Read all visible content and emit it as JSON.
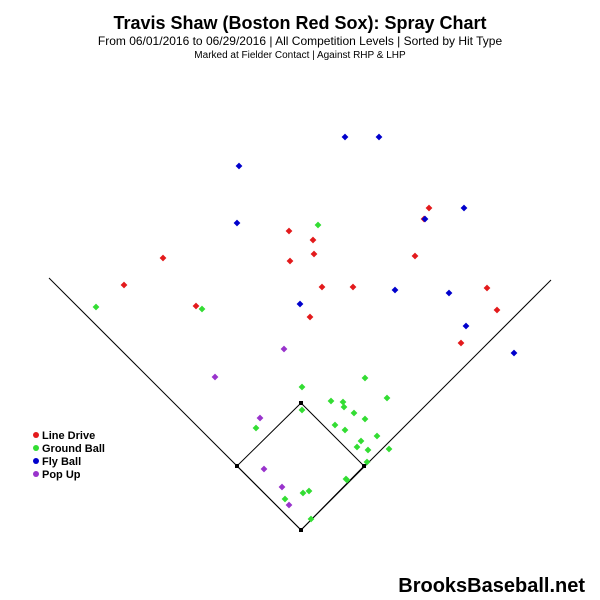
{
  "chart_data": {
    "type": "scatter",
    "title": "Travis Shaw (Boston Red Sox): Spray Chart",
    "subtitle": "From 06/01/2016 to 06/29/2016 | All Competition Levels | Sorted by Hit Type",
    "subtitle2": "Marked at Fielder Contact |   Against RHP & LHP",
    "watermark": "BrooksBaseball.net",
    "series": [
      {
        "name": "Line Drive",
        "color": "#e31a1c",
        "points": [
          [
            429,
            208
          ],
          [
            424,
            219
          ],
          [
            289,
            231
          ],
          [
            313,
            240
          ],
          [
            314,
            254
          ],
          [
            415,
            256
          ],
          [
            163,
            258
          ],
          [
            290,
            261
          ],
          [
            124,
            285
          ],
          [
            322,
            287
          ],
          [
            353,
            287
          ],
          [
            487,
            288
          ],
          [
            196,
            306
          ],
          [
            497,
            310
          ],
          [
            310,
            317
          ],
          [
            461,
            343
          ]
        ]
      },
      {
        "name": "Ground Ball",
        "color": "#33dd33",
        "points": [
          [
            318,
            225
          ],
          [
            96,
            307
          ],
          [
            202,
            309
          ],
          [
            365,
            378
          ],
          [
            302,
            387
          ],
          [
            387,
            398
          ],
          [
            331,
            401
          ],
          [
            343,
            402
          ],
          [
            344,
            407
          ],
          [
            302,
            410
          ],
          [
            354,
            413
          ],
          [
            335,
            425
          ],
          [
            365,
            419
          ],
          [
            345,
            430
          ],
          [
            377,
            436
          ],
          [
            256,
            428
          ],
          [
            361,
            441
          ],
          [
            389,
            449
          ],
          [
            357,
            447
          ],
          [
            368,
            450
          ],
          [
            367,
            462
          ],
          [
            346,
            479
          ],
          [
            347,
            480
          ],
          [
            309,
            491
          ],
          [
            303,
            493
          ],
          [
            285,
            499
          ],
          [
            311,
            519
          ]
        ]
      },
      {
        "name": "Fly Ball",
        "color": "#0000cc",
        "points": [
          [
            345,
            137
          ],
          [
            379,
            137
          ],
          [
            239,
            166
          ],
          [
            464,
            208
          ],
          [
            237,
            223
          ],
          [
            425,
            219
          ],
          [
            395,
            290
          ],
          [
            449,
            293
          ],
          [
            300,
            304
          ],
          [
            466,
            326
          ],
          [
            514,
            353
          ]
        ]
      },
      {
        "name": "Pop Up",
        "color": "#9933cc",
        "points": [
          [
            284,
            349
          ],
          [
            215,
            377
          ],
          [
            260,
            418
          ],
          [
            264,
            469
          ],
          [
            282,
            487
          ],
          [
            289,
            505
          ]
        ]
      }
    ]
  }
}
